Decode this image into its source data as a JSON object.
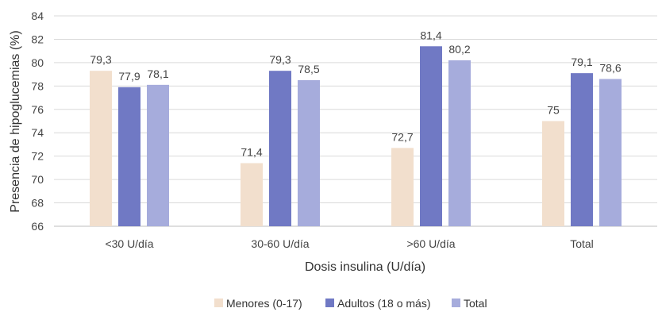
{
  "chart_data": {
    "type": "bar",
    "categories": [
      "<30 U/día",
      "30-60 U/día",
      ">60 U/día",
      "Total"
    ],
    "series": [
      {
        "name": "Menores (0-17)",
        "values": [
          79.3,
          71.4,
          72.7,
          75
        ],
        "labels": [
          "79,3",
          "71,4",
          "72,7",
          "75"
        ],
        "color": "#f2dfcd"
      },
      {
        "name": "Adultos (18 o más)",
        "values": [
          77.9,
          79.3,
          81.4,
          79.1
        ],
        "labels": [
          "77,9",
          "79,3",
          "81,4",
          "79,1"
        ],
        "color": "#7079c4"
      },
      {
        "name": "Total",
        "values": [
          78.1,
          78.5,
          80.2,
          78.6
        ],
        "labels": [
          "78,1",
          "78,5",
          "80,2",
          "78,6"
        ],
        "color": "#a6acdc"
      }
    ],
    "xlabel": "Dosis insulina (U/día)",
    "ylabel": "Presencia de hipoglucemias (%)",
    "ylim": [
      66,
      84
    ],
    "yticks": [
      66,
      68,
      70,
      72,
      74,
      76,
      78,
      80,
      82,
      84
    ],
    "grid": true,
    "legend_position": "bottom"
  }
}
